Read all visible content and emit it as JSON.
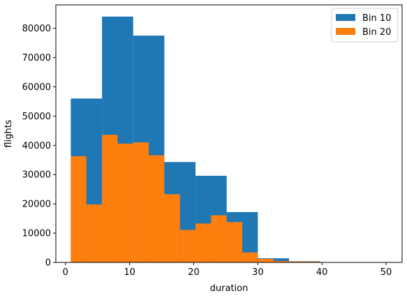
{
  "chart_data": {
    "type": "histogram",
    "xlabel": "duration",
    "ylabel": "flights",
    "xlim": [
      -1.5,
      52.5
    ],
    "ylim": [
      0,
      88000
    ],
    "xticks": [
      0,
      10,
      20,
      30,
      40,
      50
    ],
    "yticks": [
      0,
      10000,
      20000,
      30000,
      40000,
      50000,
      60000,
      70000,
      80000
    ],
    "grid": false,
    "legend_position": "top-right",
    "series": [
      {
        "name": "Bin 10",
        "color": "#1f77b4",
        "bin_edges": [
          0.83,
          5.7,
          10.56,
          15.42,
          20.28,
          25.14,
          30.0,
          34.86,
          39.72,
          44.58,
          49.44
        ],
        "counts": [
          56000,
          84000,
          77500,
          34300,
          29600,
          17200,
          1400,
          400,
          0,
          0
        ]
      },
      {
        "name": "Bin 20",
        "color": "#ff7f0e",
        "bin_edges": [
          0.83,
          3.26,
          5.7,
          8.13,
          10.56,
          12.99,
          15.42,
          17.85,
          20.28,
          22.71,
          25.14,
          27.57,
          30.0,
          32.43,
          34.86,
          37.29,
          39.72,
          42.15,
          44.58,
          47.01,
          49.44
        ],
        "counts": [
          36300,
          19800,
          43600,
          40600,
          41000,
          36600,
          23300,
          11100,
          13300,
          16100,
          13800,
          3400,
          1200,
          500,
          300,
          300,
          0,
          0,
          0,
          0
        ]
      }
    ]
  }
}
